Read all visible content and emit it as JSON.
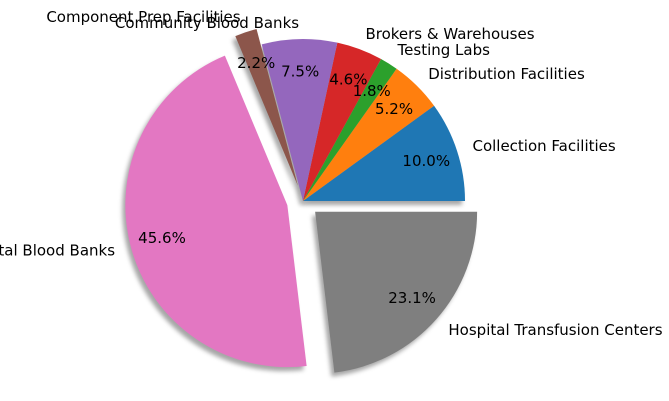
{
  "chart_data": {
    "type": "pie",
    "title": "",
    "start_angle_deg": 0,
    "direction": "counterclockwise",
    "shadow": true,
    "slices": [
      {
        "label": "Collection Facilities",
        "value": 10.0,
        "pct_label": "10.0%",
        "color": "#1f77b4",
        "explode": 0
      },
      {
        "label": "Distribution Facilities",
        "value": 5.2,
        "pct_label": "5.2%",
        "color": "#ff7f0e",
        "explode": 0
      },
      {
        "label": "Testing Labs",
        "value": 1.8,
        "pct_label": "1.8%",
        "color": "#2ca02c",
        "explode": 0
      },
      {
        "label": "Brokers & Warehouses",
        "value": 4.6,
        "pct_label": "4.6%",
        "color": "#d62728",
        "explode": 0
      },
      {
        "label": "Community Blood Banks",
        "value": 7.5,
        "pct_label": "7.5%",
        "color": "#9467bd",
        "explode": 0
      },
      {
        "label": "Component Prep Facilities",
        "value": 2.2,
        "pct_label": "2.2%",
        "color": "#8c564b",
        "explode": 0.1
      },
      {
        "label": "Hospital Blood Banks",
        "value": 45.6,
        "pct_label": "45.6%",
        "color": "#e377c2",
        "explode": 0.1
      },
      {
        "label": "Hospital Transfusion Centers",
        "value": 23.1,
        "pct_label": "23.1%",
        "color": "#7f7f7f",
        "explode": 0.1
      }
    ]
  }
}
